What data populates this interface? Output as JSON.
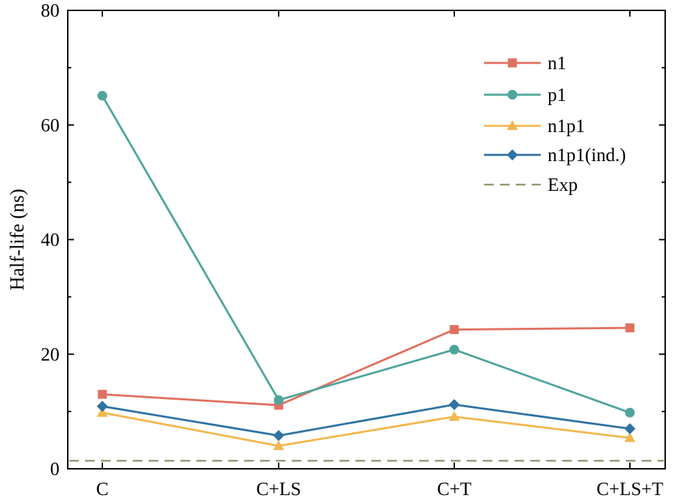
{
  "chart_data": {
    "type": "line",
    "title": "",
    "xlabel": "",
    "ylabel": "Half-life (ns)",
    "categories": [
      "C",
      "C+LS",
      "C+T",
      "C+LS+T"
    ],
    "ylim": [
      0,
      80
    ],
    "yticks": [
      0,
      20,
      40,
      60,
      80
    ],
    "grid": false,
    "legend_position": "top-right",
    "series": [
      {
        "name": "n1",
        "values": [
          13.0,
          11.1,
          24.3,
          24.6
        ],
        "color": "#e0705f",
        "marker": "square"
      },
      {
        "name": "p1",
        "values": [
          65.1,
          12.0,
          20.8,
          9.8
        ],
        "color": "#4fa59c",
        "marker": "circle"
      },
      {
        "name": "n1p1",
        "values": [
          9.8,
          4.0,
          9.1,
          5.4
        ],
        "color": "#f2b74f",
        "marker": "triangle"
      },
      {
        "name": "n1p1(ind.)",
        "values": [
          10.9,
          5.8,
          11.2,
          7.0
        ],
        "color": "#2f73a3",
        "marker": "diamond"
      }
    ],
    "reference_lines": [
      {
        "name": "Exp",
        "value": 1.4,
        "color": "#8c9a6e",
        "style": "dashed"
      }
    ]
  }
}
